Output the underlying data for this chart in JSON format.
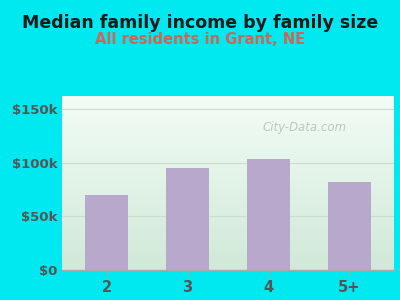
{
  "title": "Median family income by family size",
  "subtitle": "All residents in Grant, NE",
  "categories": [
    "2",
    "3",
    "4",
    "5+"
  ],
  "values": [
    70000,
    95000,
    103000,
    82000
  ],
  "bar_color": "#b8a8cc",
  "title_fontsize": 12.5,
  "subtitle_fontsize": 10.5,
  "subtitle_color": "#cc6655",
  "title_color": "#1a1a1a",
  "bg_outer": "#00e8f0",
  "yticks": [
    0,
    50000,
    100000,
    150000
  ],
  "ytick_labels": [
    "$0",
    "$50k",
    "$100k",
    "$150k"
  ],
  "ylim": [
    0,
    162000
  ],
  "tick_color": "#555555",
  "xtick_color": "#555555",
  "watermark": "City-Data.com",
  "plot_bg_top": "#f0faf5",
  "plot_bg_bottom": "#d8eedd",
  "grid_color": "#ccddcc",
  "spine_color": "#aaaaaa"
}
